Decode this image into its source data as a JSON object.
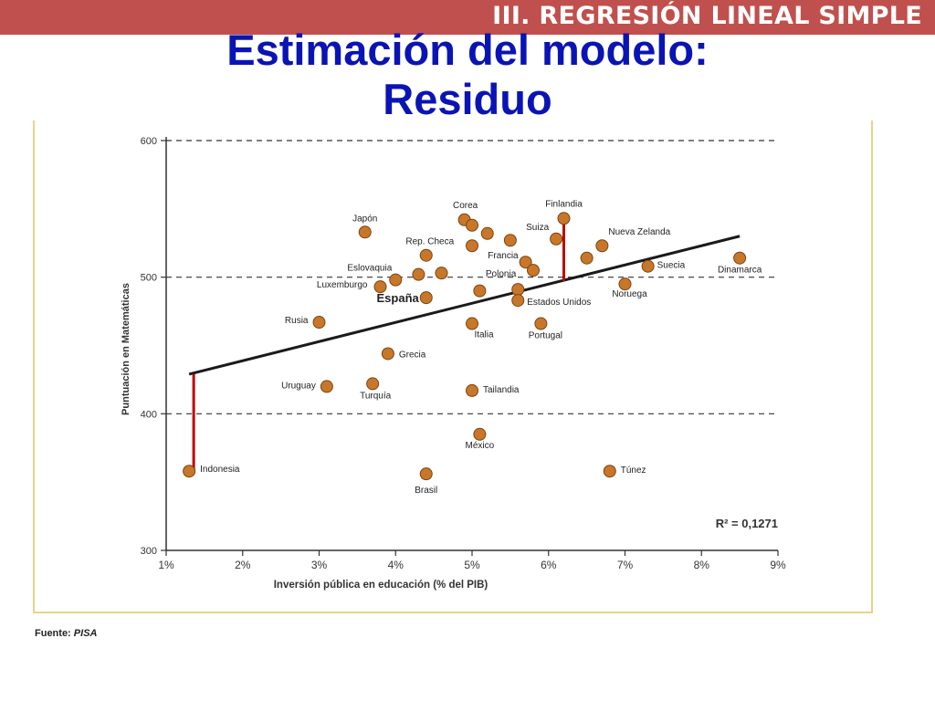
{
  "header": {
    "section": "III. REGRESIÓN LINEAL SIMPLE",
    "title_line1": "Estimación del modelo:",
    "title_line2": "Residuo"
  },
  "source": {
    "label": "Fuente:",
    "value": "PISA"
  },
  "colors": {
    "section_bar": "#c0504d",
    "title": "#0a14b4",
    "point": "#c8772a",
    "residual": "#c00000",
    "frame": "#e6d48a"
  },
  "chart_data": {
    "type": "scatter",
    "xlabel": "Inversión pública en educación (% del PIB)",
    "ylabel": "Puntuación en Matemáticas",
    "xlim": [
      1,
      9
    ],
    "ylim": [
      300,
      600
    ],
    "x_ticks": [
      1,
      2,
      3,
      4,
      5,
      6,
      7,
      8,
      9
    ],
    "x_tick_labels": [
      "1%",
      "2%",
      "3%",
      "4%",
      "5%",
      "6%",
      "7%",
      "8%",
      "9%"
    ],
    "y_ticks": [
      300,
      400,
      500,
      600
    ],
    "y_tick_labels": [
      "300",
      "400",
      "500",
      "600"
    ],
    "dashed_gridlines_y": [
      400,
      500,
      600
    ],
    "annotation": "R² = 0,1271",
    "regression_line": {
      "x": [
        1.3,
        8.5
      ],
      "y": [
        429,
        530
      ]
    },
    "residuals": [
      {
        "x": 1.3,
        "from": 358,
        "to": 429
      },
      {
        "x": 6.2,
        "from": 543,
        "to": 497
      }
    ],
    "points": [
      {
        "x": 1.3,
        "y": 358,
        "label": "Indonesia"
      },
      {
        "x": 3.0,
        "y": 467,
        "label": "Rusia"
      },
      {
        "x": 3.1,
        "y": 420,
        "label": "Uruguay"
      },
      {
        "x": 3.6,
        "y": 533,
        "label": "Japón"
      },
      {
        "x": 3.7,
        "y": 422,
        "label": "Turquía"
      },
      {
        "x": 3.8,
        "y": 493,
        "label": "Luxemburgo"
      },
      {
        "x": 3.9,
        "y": 444,
        "label": "Grecia"
      },
      {
        "x": 4.0,
        "y": 498,
        "label": "Eslovaquia"
      },
      {
        "x": 4.3,
        "y": 502,
        "label": ""
      },
      {
        "x": 4.4,
        "y": 485,
        "label": "España"
      },
      {
        "x": 4.4,
        "y": 516,
        "label": "Rep. Checa"
      },
      {
        "x": 4.4,
        "y": 356,
        "label": "Brasil"
      },
      {
        "x": 4.6,
        "y": 503,
        "label": ""
      },
      {
        "x": 4.9,
        "y": 542,
        "label": "Corea"
      },
      {
        "x": 5.0,
        "y": 538,
        "label": ""
      },
      {
        "x": 5.0,
        "y": 523,
        "label": ""
      },
      {
        "x": 5.0,
        "y": 466,
        "label": "Italia"
      },
      {
        "x": 5.0,
        "y": 417,
        "label": "Tailandia"
      },
      {
        "x": 5.1,
        "y": 490,
        "label": ""
      },
      {
        "x": 5.1,
        "y": 385,
        "label": "México"
      },
      {
        "x": 5.2,
        "y": 532,
        "label": ""
      },
      {
        "x": 5.5,
        "y": 527,
        "label": ""
      },
      {
        "x": 5.6,
        "y": 491,
        "label": "Polonia"
      },
      {
        "x": 5.6,
        "y": 483,
        "label": "Estados Unidos"
      },
      {
        "x": 5.7,
        "y": 511,
        "label": "Francia"
      },
      {
        "x": 5.8,
        "y": 505,
        "label": ""
      },
      {
        "x": 5.9,
        "y": 466,
        "label": "Portugal"
      },
      {
        "x": 6.1,
        "y": 528,
        "label": "Suiza"
      },
      {
        "x": 6.2,
        "y": 543,
        "label": "Finlandia"
      },
      {
        "x": 6.5,
        "y": 514,
        "label": ""
      },
      {
        "x": 6.7,
        "y": 523,
        "label": "Nueva Zelanda"
      },
      {
        "x": 6.8,
        "y": 358,
        "label": "Túnez"
      },
      {
        "x": 7.0,
        "y": 495,
        "label": "Noruega"
      },
      {
        "x": 7.3,
        "y": 508,
        "label": "Suecia"
      },
      {
        "x": 8.5,
        "y": 514,
        "label": "Dinamarca"
      }
    ]
  }
}
